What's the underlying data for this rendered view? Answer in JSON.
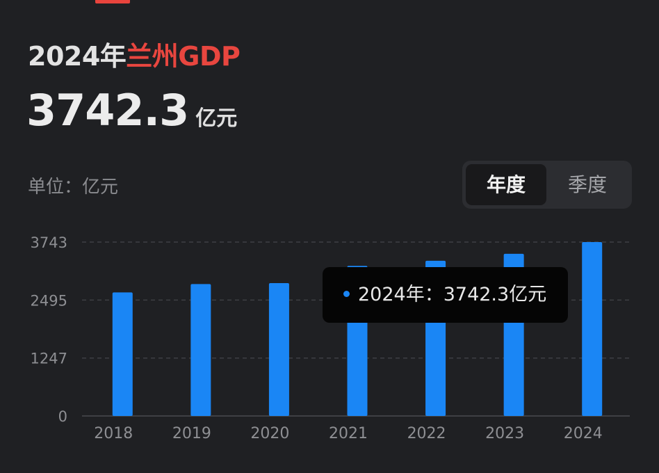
{
  "header": {
    "title_prefix": "2024年",
    "title_highlight": "兰州",
    "title_suffix": "GDP",
    "value": "3742.3",
    "value_unit": "亿元"
  },
  "unit_label": "单位：亿元",
  "period_toggle": {
    "options": [
      "年度",
      "季度"
    ],
    "selected": "年度"
  },
  "tooltip": {
    "label": "2024年：",
    "value": "3742.3亿元"
  },
  "colors": {
    "accent": "#e8463f",
    "bar": "#1a86f5",
    "background": "#1f2023"
  },
  "chart_data": {
    "type": "bar",
    "categories": [
      "2018",
      "2019",
      "2020",
      "2021",
      "2022",
      "2023",
      "2024"
    ],
    "values": [
      2660,
      2840,
      2860,
      3230,
      3340,
      3490,
      3742.3
    ],
    "ylabel": "",
    "xlabel": "",
    "yticks": [
      0,
      1247,
      2495,
      3743
    ],
    "ylim": [
      0,
      3743
    ],
    "grid": "horizontal dashed",
    "unit": "亿元"
  }
}
